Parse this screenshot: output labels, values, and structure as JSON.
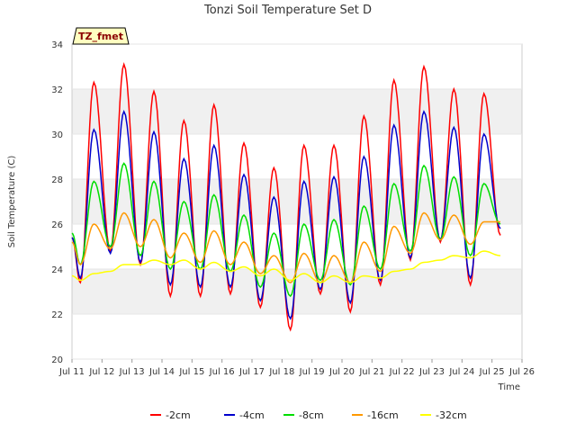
{
  "chart_data": {
    "type": "line",
    "title": "Tonzi Soil Temperature Set D",
    "xlabel": "Time",
    "ylabel": "Soil Temperature (C)",
    "xlim": [
      11,
      26
    ],
    "ylim": [
      20,
      34
    ],
    "x_ticks": [
      11,
      12,
      13,
      14,
      15,
      16,
      17,
      18,
      19,
      20,
      21,
      22,
      23,
      24,
      25,
      26
    ],
    "x_tick_labels": [
      "Jul 11",
      "Jul 12",
      "Jul 13",
      "Jul 14",
      "Jul 15",
      "Jul 16",
      "Jul 17",
      "Jul 18",
      "Jul 19",
      "Jul 20",
      "Jul 21",
      "Jul 22",
      "Jul 23",
      "Jul 24",
      "Jul 25",
      "Jul 26"
    ],
    "y_ticks": [
      20,
      22,
      24,
      26,
      28,
      30,
      32,
      34
    ],
    "y_tick_labels": [
      "20",
      "22",
      "24",
      "26",
      "28",
      "30",
      "32",
      "34"
    ],
    "grid": "horizontal alternating bands",
    "legend_position": "bottom",
    "badge": "TZ_fmet",
    "days": [
      11,
      12,
      13,
      14,
      15,
      16,
      17,
      18,
      19,
      20,
      21,
      22,
      23,
      24,
      25
    ],
    "series": [
      {
        "name": "-2cm",
        "color": "#ff0000",
        "start": 25.4,
        "peaks": [
          32.3,
          33.1,
          31.9,
          30.6,
          31.3,
          29.6,
          28.5,
          29.5,
          29.5,
          30.8,
          32.4,
          33.0,
          32.0,
          31.8
        ],
        "troughs": [
          23.4,
          24.8,
          24.2,
          22.8,
          22.8,
          22.9,
          22.3,
          21.3,
          22.9,
          22.1,
          23.3,
          24.4,
          25.2,
          23.3
        ],
        "end": 25.5
      },
      {
        "name": "-4cm",
        "color": "#0000cc",
        "start": 25.4,
        "peaks": [
          30.2,
          31.0,
          30.1,
          28.9,
          29.5,
          28.2,
          27.2,
          27.9,
          28.1,
          29.0,
          30.4,
          31.0,
          30.3,
          30.0
        ],
        "troughs": [
          23.6,
          24.7,
          24.3,
          23.3,
          23.2,
          23.2,
          22.6,
          21.8,
          23.1,
          22.5,
          23.5,
          24.5,
          25.3,
          23.6
        ],
        "end": 25.8
      },
      {
        "name": "-8cm",
        "color": "#00dd00",
        "start": 25.6,
        "peaks": [
          27.9,
          28.7,
          27.9,
          27.0,
          27.3,
          26.4,
          25.6,
          26.0,
          26.2,
          26.8,
          27.8,
          28.6,
          28.1,
          27.8
        ],
        "troughs": [
          24.2,
          25.0,
          24.6,
          24.0,
          24.0,
          23.9,
          23.2,
          22.8,
          23.5,
          23.3,
          24.0,
          24.8,
          25.3,
          24.6
        ],
        "end": 26.0
      },
      {
        "name": "-16cm",
        "color": "#ff9900",
        "start": 25.2,
        "peaks": [
          26.0,
          26.5,
          26.2,
          25.6,
          25.7,
          25.2,
          24.6,
          24.7,
          24.6,
          25.2,
          25.9,
          26.5,
          26.4,
          26.1
        ],
        "troughs": [
          24.2,
          24.9,
          25.0,
          24.5,
          24.3,
          24.2,
          23.8,
          23.4,
          23.4,
          23.4,
          23.9,
          24.7,
          25.3,
          25.1
        ],
        "end": 26.1
      },
      {
        "name": "-32cm",
        "color": "#ffff00",
        "start": 23.7,
        "peaks": [
          23.8,
          24.2,
          24.4,
          24.4,
          24.3,
          24.1,
          24.0,
          23.8,
          23.7,
          23.7,
          23.9,
          24.3,
          24.6,
          24.8
        ],
        "troughs": [
          23.5,
          23.9,
          24.2,
          24.2,
          24.0,
          23.9,
          23.7,
          23.5,
          23.4,
          23.4,
          23.6,
          24.0,
          24.4,
          24.5
        ],
        "end": 24.6
      }
    ]
  }
}
